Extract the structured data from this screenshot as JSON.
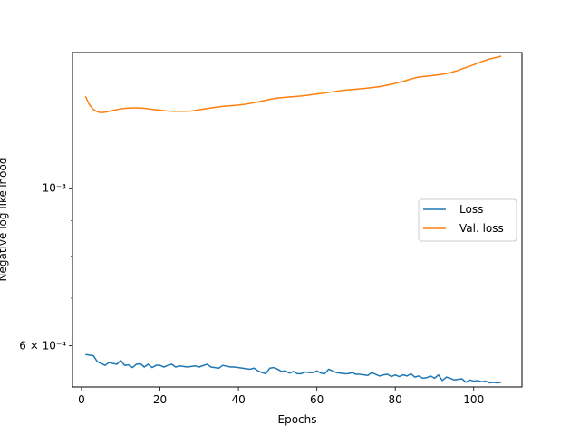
{
  "chart_data": {
    "type": "line",
    "title": "",
    "xlabel": "Epochs",
    "ylabel": "Negative log likelihood",
    "xscale": "linear",
    "yscale": "log",
    "xlim": [
      -2.3,
      112.3
    ],
    "ylim": [
      0.000525,
      0.00155
    ],
    "xticks": [
      0,
      20,
      40,
      60,
      80,
      100
    ],
    "xtick_labels": [
      "0",
      "20",
      "40",
      "60",
      "80",
      "100"
    ],
    "yticks": [
      0.0006,
      0.001
    ],
    "ytick_labels": [
      "6 × 10⁻⁴",
      "10⁻³"
    ],
    "minor_yticks": [
      0.0007,
      0.0008,
      0.0009
    ],
    "grid": false,
    "legend_position": "center-right",
    "series": [
      {
        "name": "Loss",
        "color": "#1f77b4",
        "x": [
          1,
          3,
          4,
          6,
          7,
          9,
          10,
          11,
          12,
          13,
          14,
          15,
          16,
          17,
          18,
          19,
          20,
          21,
          22,
          23,
          24,
          25,
          27,
          29,
          30,
          32,
          33,
          35,
          36,
          38,
          39,
          41,
          43,
          44,
          45,
          46,
          47,
          48,
          49,
          50,
          51,
          52,
          53,
          54,
          55,
          56,
          57,
          58,
          59,
          60,
          61,
          62,
          63,
          64,
          65,
          66,
          67,
          68,
          69,
          70,
          71,
          72,
          73,
          74,
          75,
          76,
          77,
          78,
          79,
          80,
          81,
          82,
          83,
          84,
          85,
          86,
          87,
          88,
          89,
          90,
          91,
          92,
          93,
          94,
          95,
          96,
          97,
          98,
          99,
          100,
          101,
          102,
          103,
          104,
          105,
          106,
          107
        ],
        "values": [
          0.000583,
          0.000581,
          0.00057,
          0.000563,
          0.000568,
          0.000565,
          0.000572,
          0.000563,
          0.000564,
          0.000559,
          0.000565,
          0.000566,
          0.00056,
          0.000565,
          0.000559,
          0.000563,
          0.000563,
          0.00056,
          0.000563,
          0.000565,
          0.00056,
          0.000562,
          0.00056,
          0.000562,
          0.00056,
          0.000565,
          0.00056,
          0.000558,
          0.000563,
          0.00056,
          0.00056,
          0.000558,
          0.000556,
          0.000558,
          0.000553,
          0.00055,
          0.000548,
          0.000558,
          0.000559,
          0.000556,
          0.000552,
          0.000553,
          0.000549,
          0.000552,
          0.000548,
          0.000548,
          0.000551,
          0.00055,
          0.00055,
          0.000553,
          0.000549,
          0.000548,
          0.000556,
          0.000553,
          0.00055,
          0.000549,
          0.000548,
          0.000548,
          0.00055,
          0.000547,
          0.000547,
          0.000546,
          0.000545,
          0.00055,
          0.000547,
          0.000544,
          0.000546,
          0.000547,
          0.000543,
          0.000546,
          0.000543,
          0.000546,
          0.000544,
          0.000548,
          0.000542,
          0.000544,
          0.00054,
          0.000541,
          0.000544,
          0.00054,
          0.000546,
          0.000536,
          0.000542,
          0.00054,
          0.000537,
          0.000538,
          0.000539,
          0.000533,
          0.000537,
          0.000535,
          0.000536,
          0.000534,
          0.000535,
          0.000532,
          0.000533,
          0.000532,
          0.000533
        ]
      },
      {
        "name": "Val. loss",
        "color": "#ff7f0e",
        "x": [
          1,
          2,
          3,
          4,
          5,
          6,
          8,
          10,
          12,
          14,
          16,
          18,
          20,
          22,
          24,
          26,
          28,
          30,
          32,
          34,
          36,
          38,
          40,
          42,
          44,
          46,
          48,
          50,
          52,
          54,
          56,
          58,
          60,
          62,
          64,
          66,
          68,
          70,
          72,
          74,
          76,
          78,
          80,
          82,
          84,
          86,
          88,
          90,
          92,
          94,
          96,
          98,
          100,
          102,
          104,
          106,
          107
        ],
        "values": [
          0.001345,
          0.00131,
          0.00129,
          0.00128,
          0.001276,
          0.001278,
          0.001285,
          0.001292,
          0.001295,
          0.001296,
          0.001294,
          0.00129,
          0.001286,
          0.001283,
          0.001282,
          0.001282,
          0.001283,
          0.001288,
          0.001293,
          0.001298,
          0.001302,
          0.001305,
          0.001308,
          0.001312,
          0.001318,
          0.001325,
          0.001332,
          0.001338,
          0.001341,
          0.001344,
          0.001347,
          0.001351,
          0.001356,
          0.00136,
          0.001365,
          0.00137,
          0.001374,
          0.001377,
          0.00138,
          0.001384,
          0.001388,
          0.001395,
          0.001403,
          0.001412,
          0.001423,
          0.001432,
          0.001436,
          0.00144,
          0.001445,
          0.001452,
          0.001463,
          0.001477,
          0.00149,
          0.001505,
          0.001518,
          0.001527,
          0.001532
        ]
      }
    ]
  }
}
